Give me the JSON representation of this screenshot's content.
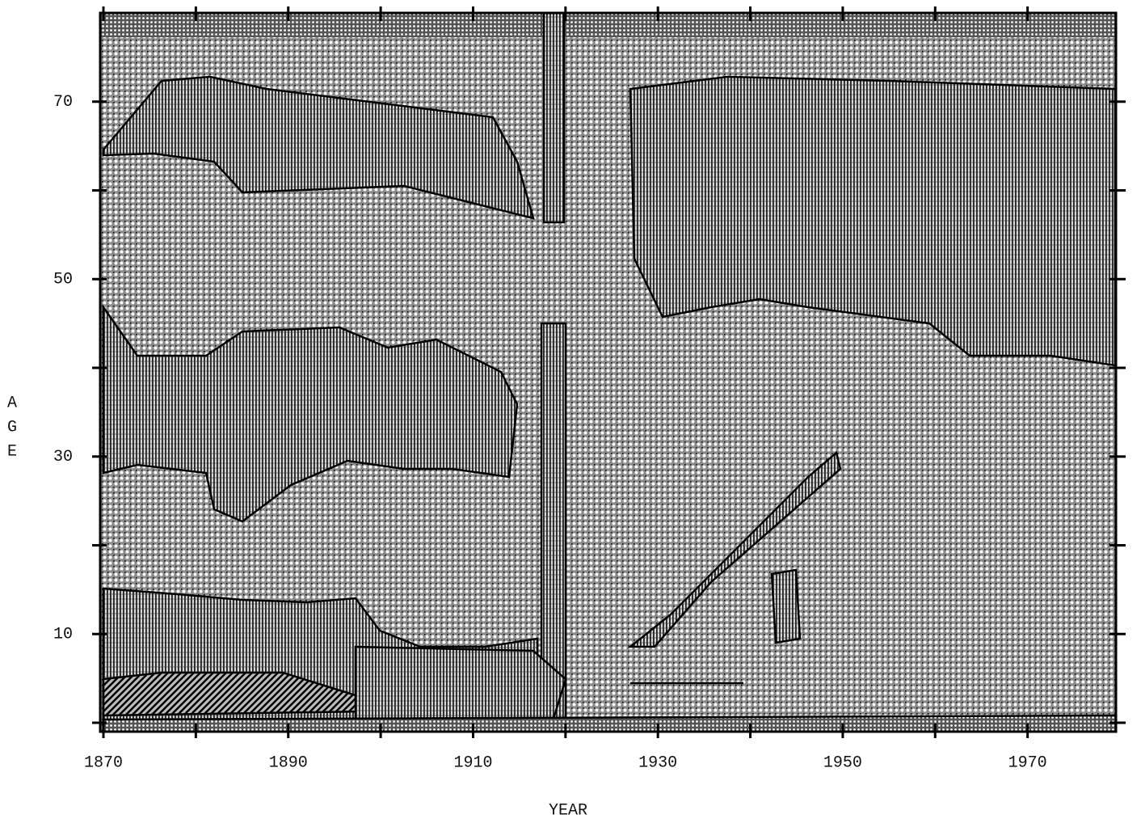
{
  "chart_data": {
    "type": "pattern-map",
    "xlabel": "YEAR",
    "ylabel": [
      "A",
      "G",
      "E"
    ],
    "xlim": [
      1870,
      1980
    ],
    "ylim": [
      -1,
      80
    ],
    "xticks": [
      1870,
      1890,
      1910,
      1930,
      1950,
      1970
    ],
    "xminorticks": [
      1880,
      1900,
      1920,
      1940,
      1960
    ],
    "yticks": [
      10,
      30,
      50,
      70
    ],
    "yminorticks": [
      0,
      20,
      40,
      60
    ]
  }
}
